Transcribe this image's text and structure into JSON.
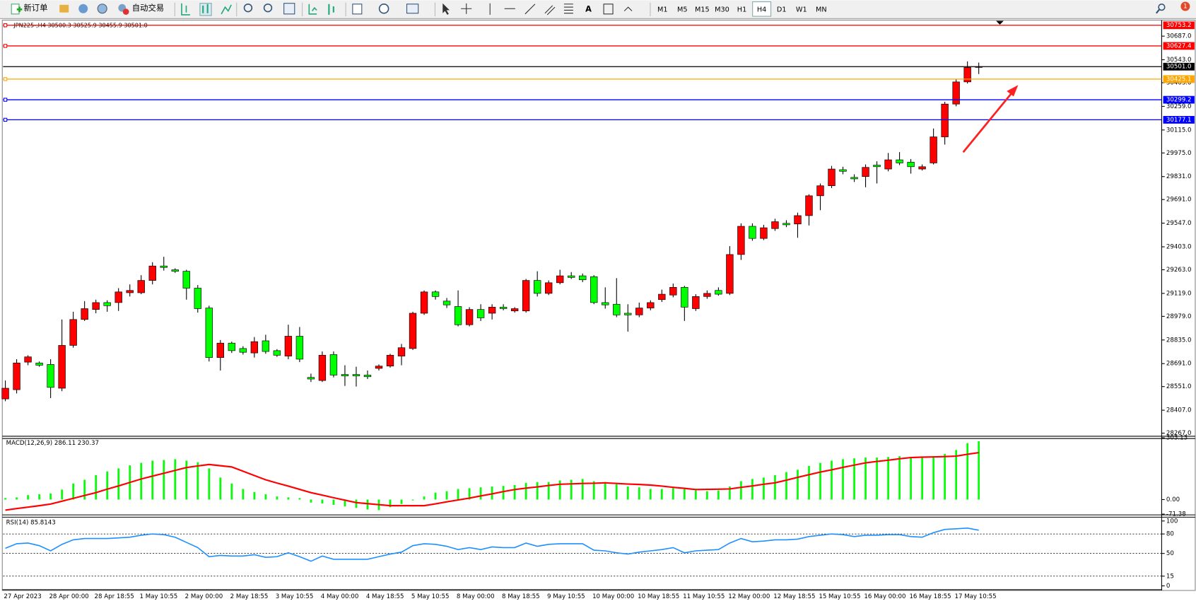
{
  "toolbar": {
    "new_order": "新订单",
    "auto_trading": "自动交易",
    "timeframes": [
      "M1",
      "M5",
      "M15",
      "M30",
      "H1",
      "H4",
      "D1",
      "W1",
      "MN"
    ],
    "selected": 5,
    "notifications": "1"
  },
  "chart_data": [
    {
      "type": "candlestick",
      "title": "JPN225-,H4  30500.3 30525.9 30455.9 30501.0",
      "up_color": "#ff0000",
      "down_color": "#00ff00",
      "categories": [
        "27 Apr 2023",
        null,
        null,
        null,
        "28 Apr 00:00",
        null,
        null,
        null,
        "28 Apr 18:55",
        null,
        null,
        null,
        "1 May 10:55",
        null,
        null,
        null,
        "2 May 00:00",
        null,
        null,
        null,
        "2 May 18:55",
        null,
        null,
        null,
        "3 May 10:55",
        null,
        null,
        null,
        "4 May 00:00",
        null,
        null,
        null,
        "4 May 18:55",
        null,
        null,
        null,
        "5 May 10:55",
        null,
        null,
        null,
        "8 May 00:00",
        null,
        null,
        null,
        "8 May 18:55",
        null,
        null,
        null,
        "9 May 10:55",
        null,
        null,
        null,
        "10 May 00:00",
        null,
        null,
        null,
        "10 May 18:55",
        null,
        null,
        null,
        "11 May 10:55",
        null,
        null,
        null,
        "12 May 00:00",
        null,
        null,
        null,
        "12 May 18:55",
        null,
        null,
        null,
        "15 May 10:55",
        null,
        null,
        null,
        "16 May 00:00",
        null,
        null,
        null,
        "16 May 18:55",
        null,
        null,
        null,
        "17 May 10:55",
        null,
        null
      ],
      "open": [
        28476,
        28532,
        28700,
        28695,
        28686,
        28541,
        28802,
        28960,
        29021,
        29063,
        29063,
        29123,
        29123,
        29198,
        29286,
        29263,
        29254,
        29151,
        29030,
        28728,
        28816,
        28783,
        28756,
        28830,
        28770,
        28737,
        28858,
        28607,
        28588,
        28746,
        28625,
        28625,
        28621,
        28662,
        28676,
        28737,
        28783,
        28998,
        29128,
        29072,
        29039,
        28928,
        29021,
        28998,
        29035,
        29012,
        29012,
        29198,
        29119,
        29184,
        29226,
        29226,
        29221,
        29063,
        29053,
        28998,
        28988,
        29030,
        29081,
        29109,
        29156,
        29026,
        29100,
        29137,
        29119,
        29356,
        29528,
        29454,
        29514,
        29546,
        29542,
        29593,
        29714,
        29775,
        29873,
        29826,
        29831,
        29901,
        29877,
        29933,
        29919,
        29877,
        29914,
        30073,
        30273,
        30408,
        30500.3
      ],
      "high": [
        28588,
        28718,
        28742,
        28704,
        28718,
        28960,
        29007,
        29072,
        29081,
        29077,
        29151,
        29174,
        29230,
        29309,
        29342,
        29272,
        29263,
        29170,
        29044,
        28835,
        28825,
        28797,
        28853,
        28867,
        28779,
        28928,
        28914,
        28630,
        28765,
        28765,
        28681,
        28672,
        28649,
        28686,
        28751,
        28811,
        29007,
        29137,
        29137,
        29091,
        29137,
        29035,
        29053,
        29053,
        29053,
        29035,
        29207,
        29254,
        29198,
        29263,
        29249,
        29240,
        29230,
        29156,
        29212,
        29053,
        29063,
        29077,
        29142,
        29179,
        29165,
        29114,
        29137,
        29156,
        29407,
        29546,
        29546,
        29537,
        29574,
        29565,
        29611,
        29723,
        29789,
        29896,
        29891,
        29845,
        29905,
        29924,
        29975,
        29980,
        29938,
        29905,
        30124,
        30287,
        30426,
        30533,
        30525.9
      ],
      "low": [
        28462,
        28509,
        28681,
        28672,
        28481,
        28523,
        28788,
        28951,
        28998,
        29007,
        29012,
        29100,
        29114,
        29174,
        29258,
        29244,
        29081,
        29002,
        28704,
        28649,
        28756,
        28746,
        28728,
        28751,
        28732,
        28718,
        28700,
        28579,
        28579,
        28607,
        28555,
        28551,
        28597,
        28649,
        28667,
        28681,
        28774,
        28988,
        29081,
        29030,
        28918,
        28918,
        28951,
        28960,
        29016,
        29002,
        29002,
        29100,
        29109,
        29174,
        29207,
        29188,
        29053,
        29026,
        28974,
        28886,
        28974,
        29016,
        29067,
        29095,
        28951,
        29012,
        29086,
        29105,
        29109,
        29323,
        29440,
        29444,
        29500,
        29523,
        29458,
        29533,
        29626,
        29761,
        29845,
        29798,
        29766,
        29789,
        29863,
        29901,
        29849,
        29868,
        29905,
        30026,
        30259,
        30398,
        30455.9
      ],
      "close": [
        28541,
        28695,
        28732,
        28681,
        28546,
        28802,
        28960,
        29026,
        29063,
        29044,
        29128,
        29137,
        29198,
        29286,
        29277,
        29254,
        29151,
        29026,
        28728,
        28816,
        28770,
        28760,
        28825,
        28765,
        28742,
        28858,
        28718,
        28597,
        28742,
        28621,
        28616,
        28616,
        28611,
        28676,
        28742,
        28788,
        28998,
        29128,
        29100,
        29049,
        28928,
        29021,
        28970,
        29035,
        29026,
        29026,
        29198,
        29119,
        29184,
        29226,
        29216,
        29202,
        29063,
        29049,
        28988,
        28988,
        29030,
        29063,
        29114,
        29156,
        29035,
        29100,
        29119,
        29114,
        29356,
        29528,
        29454,
        29519,
        29556,
        29537,
        29593,
        29714,
        29775,
        29877,
        29863,
        29817,
        29887,
        29891,
        29933,
        29914,
        29891,
        29891,
        30073,
        30273,
        30408,
        30496,
        30501
      ],
      "ylim": [
        28253,
        30780
      ],
      "yticks": [
        {
          "value": 30687,
          "label": "30687.0"
        },
        {
          "value": 30543,
          "label": "30543.0"
        },
        {
          "value": 30403,
          "label": "30403.0"
        },
        {
          "value": 30259,
          "label": "30259.0"
        },
        {
          "value": 30115,
          "label": "30115.0"
        },
        {
          "value": 29975,
          "label": "29975.0"
        },
        {
          "value": 29831,
          "label": "29831.0"
        },
        {
          "value": 29691,
          "label": "29691.0"
        },
        {
          "value": 29547,
          "label": "29547.0"
        },
        {
          "value": 29403,
          "label": "29403.0"
        },
        {
          "value": 29263,
          "label": "29263.0"
        },
        {
          "value": 29119,
          "label": "29119.0"
        },
        {
          "value": 28979,
          "label": "28979.0"
        },
        {
          "value": 28835,
          "label": "28835.0"
        },
        {
          "value": 28691,
          "label": "28691.0"
        },
        {
          "value": 28551,
          "label": "28551.0"
        },
        {
          "value": 28407,
          "label": "28407.0"
        },
        {
          "value": 28267,
          "label": "28267.0"
        }
      ],
      "price_lines": [
        {
          "value": 30753.2,
          "color": "#ff0000"
        },
        {
          "value": 30627.4,
          "color": "#ff0000"
        },
        {
          "value": 30501,
          "label": "30501.0",
          "color": "#000000"
        },
        {
          "value": 30425.1,
          "color": "#ffa500"
        },
        {
          "value": 30299.2,
          "color": "#0000ff"
        },
        {
          "value": 30177.1,
          "color": "#0000ff"
        }
      ]
    },
    {
      "type": "bar",
      "title": "MACD(12,26,9) 286.11 230.37",
      "series": [
        {
          "color": "#00ff00",
          "values": [
            7.5,
            11,
            22,
            26,
            30,
            49,
            79,
            97,
            120,
            138,
            153,
            168,
            180,
            191,
            194,
            198,
            191,
            183,
            153,
            108,
            79,
            52,
            37,
            26,
            15,
            11,
            7.5,
            -15,
            -19,
            -26,
            -34,
            -41,
            -49,
            -52,
            -37,
            -22,
            -4,
            15,
            34,
            41,
            52,
            56,
            60,
            64,
            67,
            71,
            82,
            86,
            86,
            94,
            97,
            101,
            90,
            86,
            75,
            64,
            60,
            52,
            52,
            56,
            52,
            45,
            41,
            45,
            64,
            90,
            101,
            108,
            120,
            135,
            146,
            165,
            180,
            191,
            198,
            202,
            206,
            206,
            209,
            213,
            209,
            209,
            213,
            224,
            243,
            277,
            286.11
          ]
        },
        {
          "color": "#ff0000",
          "kind": "line",
          "values": [
            -52,
            -44,
            -37,
            -30,
            -22,
            -8,
            6,
            20,
            34,
            51,
            67,
            84,
            101,
            115,
            129,
            143,
            157,
            165,
            172,
            166,
            160,
            139,
            118,
            97,
            81,
            66,
            50,
            34,
            22,
            9,
            -3,
            -15,
            -20,
            -25,
            -30,
            -30,
            -30,
            -30,
            -21,
            -11,
            -2,
            7,
            18,
            28,
            39,
            49,
            56,
            62,
            69,
            75,
            77,
            79,
            80,
            82,
            79,
            76,
            74,
            71,
            66,
            60,
            55,
            49,
            50,
            51,
            52,
            60,
            67,
            75,
            82,
            95,
            109,
            122,
            135,
            146,
            158,
            169,
            180,
            187,
            193,
            200,
            206,
            208,
            209,
            211,
            213,
            222,
            230.37
          ]
        }
      ],
      "ylim": [
        -71.38,
        303.13
      ],
      "yticks": [
        303.13,
        {
          "value": 0,
          "label": "0.00"
        },
        -71.38
      ]
    },
    {
      "type": "line",
      "title": "RSI(14) 85.8143",
      "color": "#1e90ff",
      "values": [
        58,
        65,
        66,
        62,
        54,
        64,
        71,
        73,
        73,
        73,
        74,
        75,
        78,
        80,
        79,
        75,
        67,
        59,
        45,
        47,
        46,
        46,
        48,
        44,
        45,
        51,
        45,
        38,
        46,
        41,
        41,
        41,
        41,
        45,
        49,
        52,
        62,
        65,
        64,
        61,
        56,
        59,
        56,
        60,
        59,
        59,
        66,
        61,
        64,
        65,
        65,
        65,
        55,
        54,
        51,
        49,
        52,
        54,
        56,
        59,
        51,
        54,
        55,
        56,
        66,
        73,
        68,
        69,
        71,
        71,
        72,
        76,
        78,
        80,
        79,
        76,
        78,
        78,
        79,
        79,
        76,
        75,
        82,
        87,
        88,
        89,
        85.8143
      ],
      "ylim": [
        0,
        100
      ],
      "yticks": [
        100,
        80,
        50,
        15,
        0
      ],
      "levels": [
        80,
        50,
        15
      ]
    }
  ]
}
